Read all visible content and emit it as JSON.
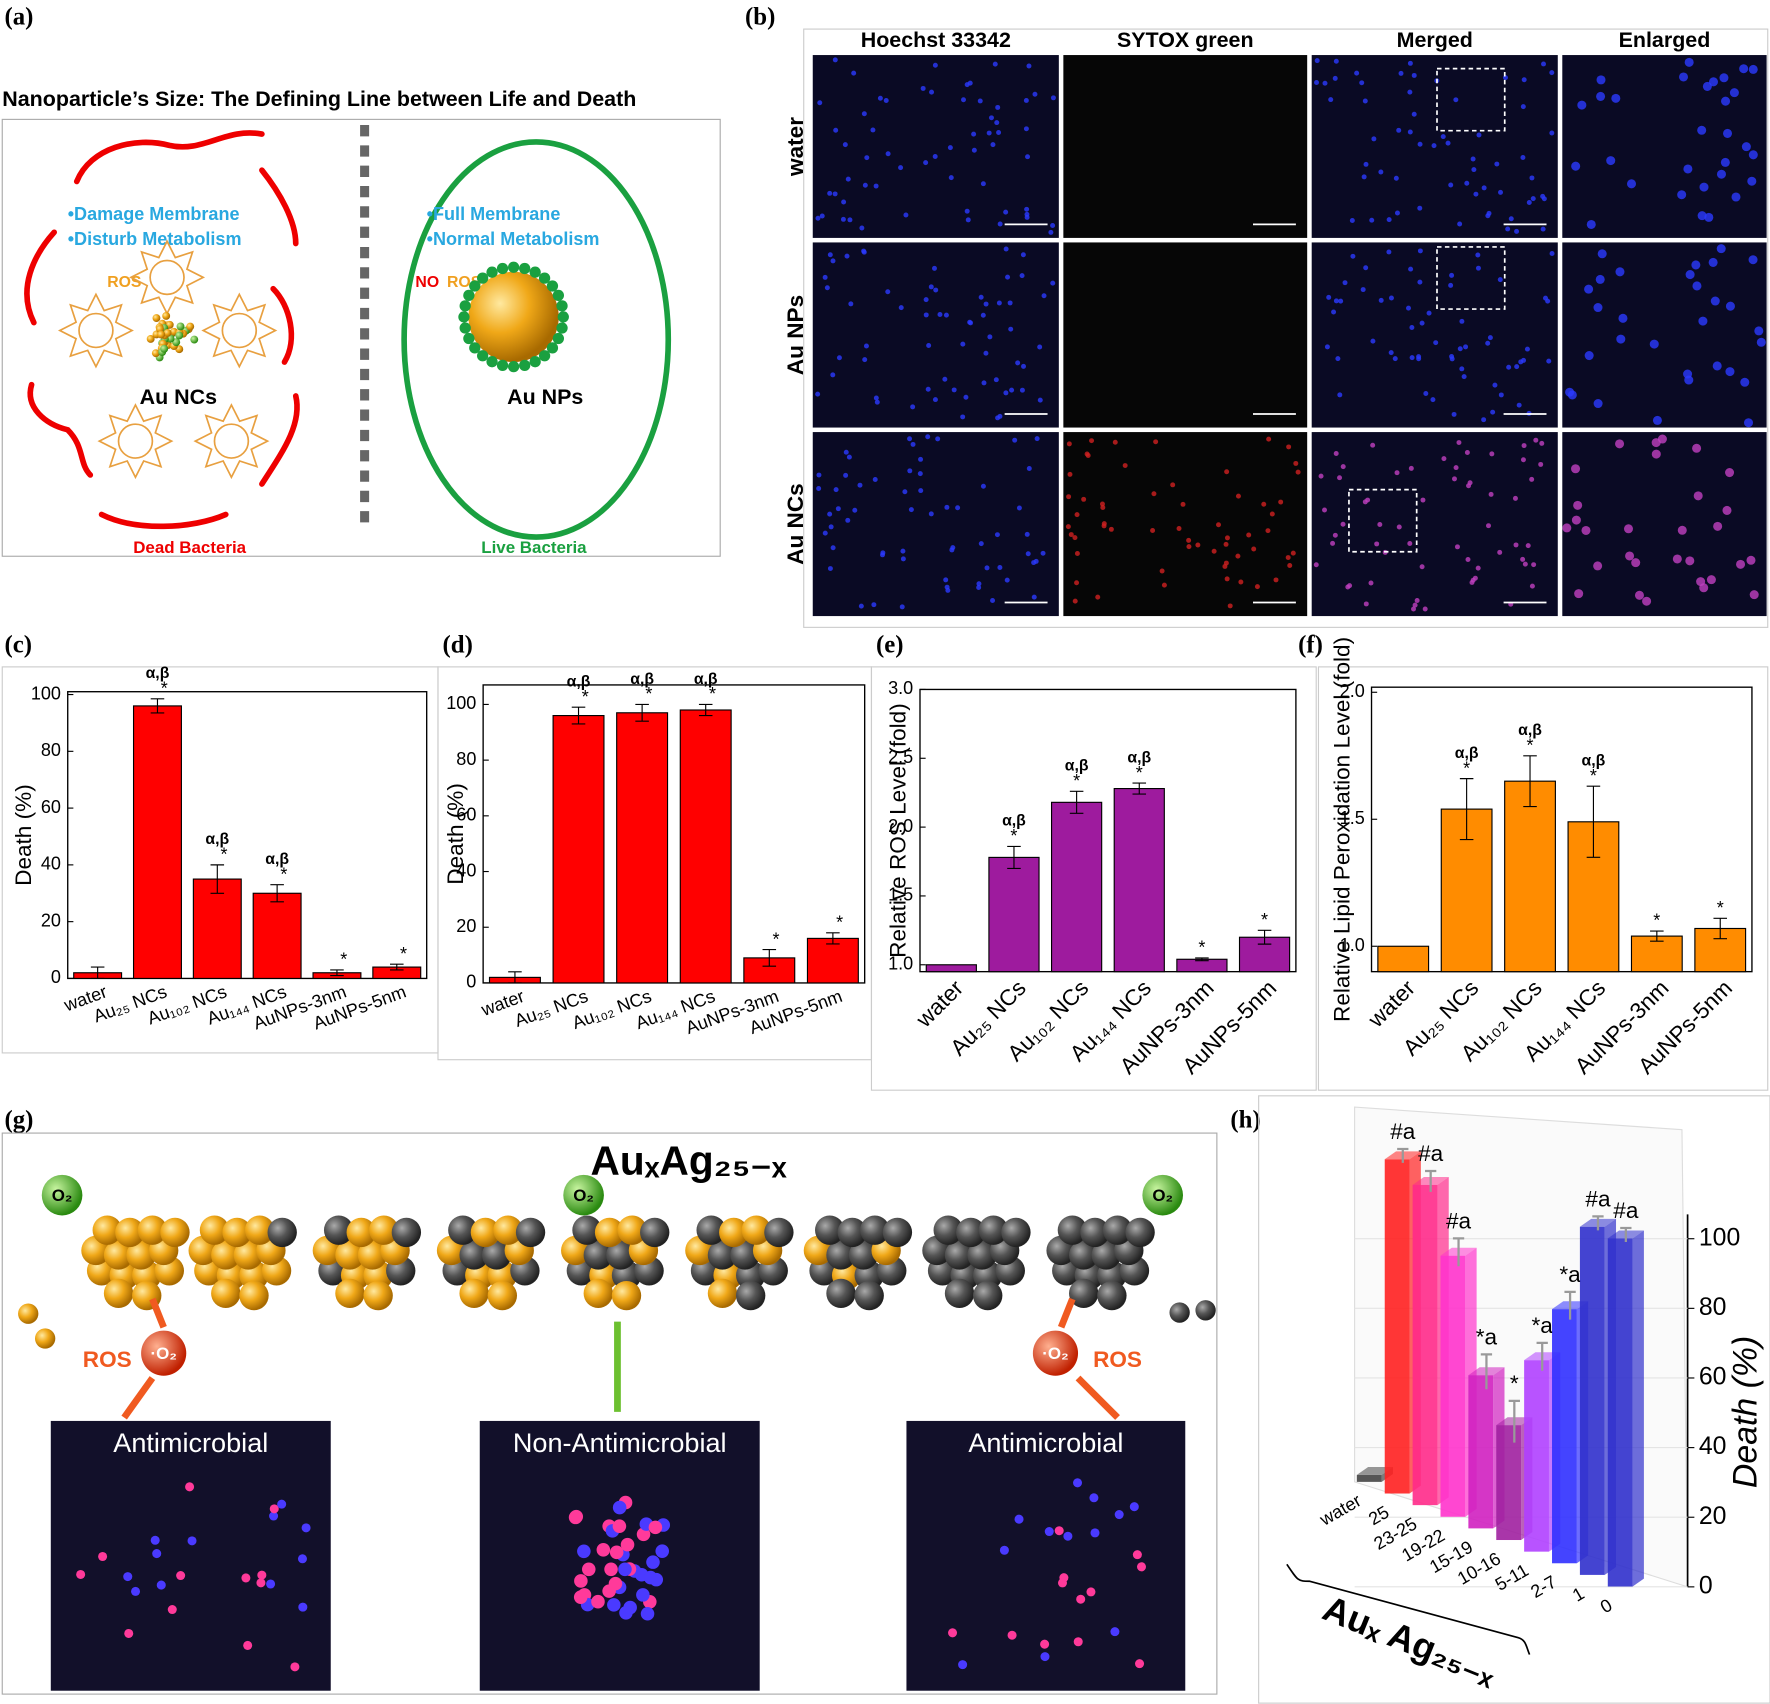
{
  "panel_a": {
    "label": "(a)",
    "title": "Nanoparticle’s Size: The Defining Line between Life and Death",
    "dead": {
      "points": [
        "•Damage Membrane",
        "•Disturb Metabolism"
      ],
      "ros": "ROS",
      "particle": "Au NCs",
      "caption": "Dead Bacteria"
    },
    "live": {
      "points": [
        "•Full Membrane",
        "•Normal Metabolism"
      ],
      "no": "NO",
      "ros": "ROS",
      "particle": "Au NPs",
      "caption": "Live Bacteria"
    }
  },
  "panel_b": {
    "label": "(b)",
    "columns": [
      "Hoechst 33342",
      "SYTOX green",
      "Merged",
      "Enlarged"
    ],
    "rows": [
      "water",
      "Au NPs",
      "Au NCs"
    ]
  },
  "panel_g": {
    "label": "(g)",
    "title": "AuₓAg₂₅₋ₓ",
    "oxygen": [
      "O₂",
      "O₂",
      "O₂"
    ],
    "ros": [
      "ROS",
      "ROS"
    ],
    "radical": [
      "·O₂",
      "·O₂"
    ],
    "images": [
      "Antimicrobial",
      "Non-Antimicrobial",
      "Antimicrobial"
    ]
  },
  "chart_data": [
    {
      "type": "bar",
      "label": "(c)",
      "ylabel": "Death (%)",
      "categories": [
        "water",
        "Au₂₅ NCs",
        "Au₁₀₂ NCs",
        "Au₁₄₄ NCs",
        "AuNPs-3nm",
        "AuNPs-5nm"
      ],
      "values": [
        2,
        96,
        35,
        30,
        2,
        4
      ],
      "errors": [
        2,
        2.5,
        5,
        3,
        1,
        1
      ],
      "color": "#ff0000",
      "ylim": [
        0,
        101
      ],
      "yticks": [
        0,
        20,
        40,
        60,
        80,
        100
      ],
      "significance": [
        null,
        "α,β",
        "α,β",
        "α,β",
        null,
        null
      ],
      "stars": [
        null,
        "*",
        "*",
        "*",
        "*",
        "*"
      ]
    },
    {
      "type": "bar",
      "label": "(d)",
      "ylabel": "Death (%)",
      "categories": [
        "water",
        "Au₂₅ NCs",
        "Au₁₀₂ NCs",
        "Au₁₄₄ NCs",
        "AuNPs-3nm",
        "AuNPs-5nm"
      ],
      "values": [
        2,
        96,
        97,
        98,
        9,
        16
      ],
      "errors": [
        2,
        3,
        3,
        2,
        3,
        2
      ],
      "color": "#ff0000",
      "ylim": [
        0,
        107
      ],
      "yticks": [
        0,
        20,
        40,
        60,
        80,
        100
      ],
      "significance": [
        null,
        "α,β",
        "α,β",
        "α,β",
        null,
        null
      ],
      "stars": [
        null,
        "*",
        "*",
        "*",
        "*",
        "*"
      ]
    },
    {
      "type": "bar",
      "label": "(e)",
      "ylabel": "Relative ROS Level (fold)",
      "categories": [
        "water",
        "Au₂₅ NCs",
        "Au₁₀₂ NCs",
        "Au₁₄₄ NCs",
        "AuNPs-3nm",
        "AuNPs-5nm"
      ],
      "values": [
        1.0,
        1.78,
        2.18,
        2.28,
        1.04,
        1.2
      ],
      "errors": [
        null,
        0.08,
        0.08,
        0.04,
        0.01,
        0.05
      ],
      "color": "#9e1b9e",
      "ylim": [
        0.95,
        3.0
      ],
      "yticks": [
        {
          "value": 1,
          "label": "1.0"
        },
        {
          "value": 1.5,
          "label": "1.5"
        },
        {
          "value": 2,
          "label": "2.0"
        },
        {
          "value": 2.5,
          "label": "2.5"
        },
        {
          "value": 3,
          "label": "3.0"
        }
      ],
      "significance": [
        null,
        "α,β",
        "α,β",
        "α,β",
        null,
        null
      ],
      "stars": [
        null,
        "*",
        "*",
        "*",
        "*",
        "*"
      ]
    },
    {
      "type": "bar",
      "label": "(f)",
      "ylabel": "Relative Lipid Peroxidation Level (fold)",
      "categories": [
        "water",
        "Au₂₅ NCs",
        "Au₁₀₂ NCs",
        "Au₁₄₄ NCs",
        "AuNPs-3nm",
        "AuNPs-5nm"
      ],
      "values": [
        1.0,
        1.54,
        1.65,
        1.49,
        1.04,
        1.07
      ],
      "errors": [
        null,
        0.12,
        0.1,
        0.14,
        0.02,
        0.04
      ],
      "color": "#ff8c00",
      "ylim": [
        0.9,
        2.02
      ],
      "yticks": [
        {
          "value": 1,
          "label": "1.0"
        },
        {
          "value": 1.5,
          "label": "1.5"
        },
        {
          "value": 2,
          "label": "2.0"
        }
      ],
      "significance": [
        null,
        "α,β",
        "α,β",
        "α,β",
        null,
        null
      ],
      "stars": [
        null,
        "*",
        "*",
        "*",
        "*",
        "*"
      ]
    },
    {
      "type": "bar3d",
      "label": "(h)",
      "xlabel": "Auₓ Ag₂₅₋ₓ",
      "zlabel": "Death (%)",
      "categories": [
        "water",
        "25",
        "23-25",
        "19-22",
        "15-19",
        "10-16",
        "5-11",
        "2-7",
        "1",
        "0"
      ],
      "values": [
        2,
        96,
        92,
        75,
        44,
        33,
        55,
        73,
        100,
        100
      ],
      "errors": [
        null,
        2,
        3,
        4,
        5,
        6,
        4,
        4,
        2,
        2
      ],
      "colors": [
        "#444444",
        "#ff2020",
        "#ff2a8a",
        "#ff33cc",
        "#d020c0",
        "#a020a0",
        "#b040ff",
        "#3030ff",
        "#3030cc",
        "#3030cc"
      ],
      "annotations": [
        null,
        "#a",
        "#a",
        "#a",
        "*a",
        "*",
        "*a",
        "*a",
        "#a",
        "#a"
      ],
      "zlim": [
        0,
        107
      ],
      "zticks": [
        0,
        20,
        40,
        60,
        80,
        100
      ]
    }
  ]
}
